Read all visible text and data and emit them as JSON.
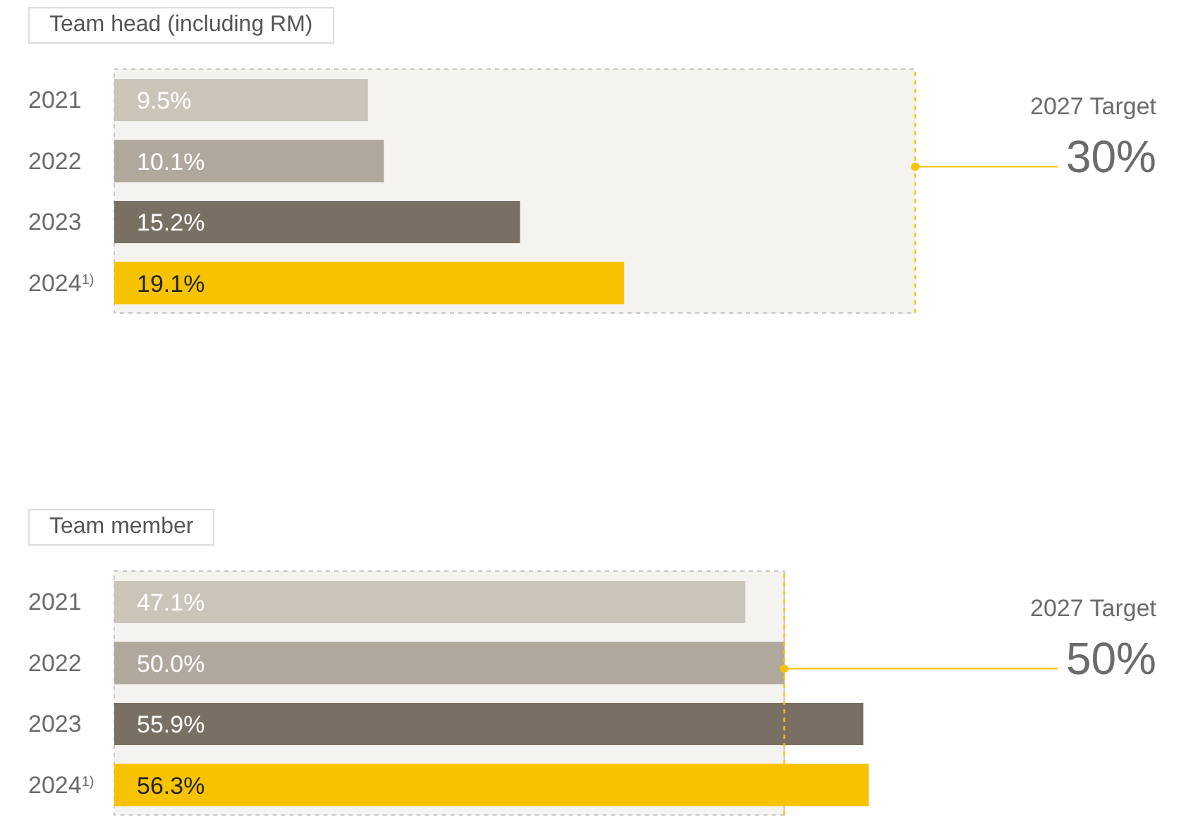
{
  "chart_data": [
    {
      "type": "bar",
      "title": "Team head (including RM)",
      "orientation": "horizontal",
      "categories": [
        "2021",
        "2022",
        "2023",
        "2024$^{1)}$"
      ],
      "colors": [
        "#cbc4b9",
        "#b0a89d",
        "#7a6f63",
        "#f7c300"
      ],
      "values": [
        9.5,
        10.1,
        15.2,
        19.1
      ],
      "value_labels": [
        "9.5%",
        "10.1%",
        "15.2%",
        "19.1%"
      ],
      "ref_lines": [
        {
          "axis": "x",
          "value": 30,
          "label": "2027 Target 30%",
          "color": "#f7c300"
        }
      ]
    },
    {
      "type": "bar",
      "title": "Team member",
      "orientation": "horizontal",
      "categories": [
        "2021",
        "2022",
        "2023",
        "2024$^{1)}$"
      ],
      "colors": [
        "#cbc4b9",
        "#b0a89d",
        "#7a6f63",
        "#f7c300"
      ],
      "values": [
        47.1,
        50.0,
        55.9,
        56.3
      ],
      "value_labels": [
        "47.1%",
        "50.0%",
        "55.9%",
        "56.3%"
      ],
      "ref_lines": [
        {
          "axis": "x",
          "value": 50,
          "label": "2027 Target 50%",
          "color": "#f7c300"
        }
      ]
    }
  ]
}
